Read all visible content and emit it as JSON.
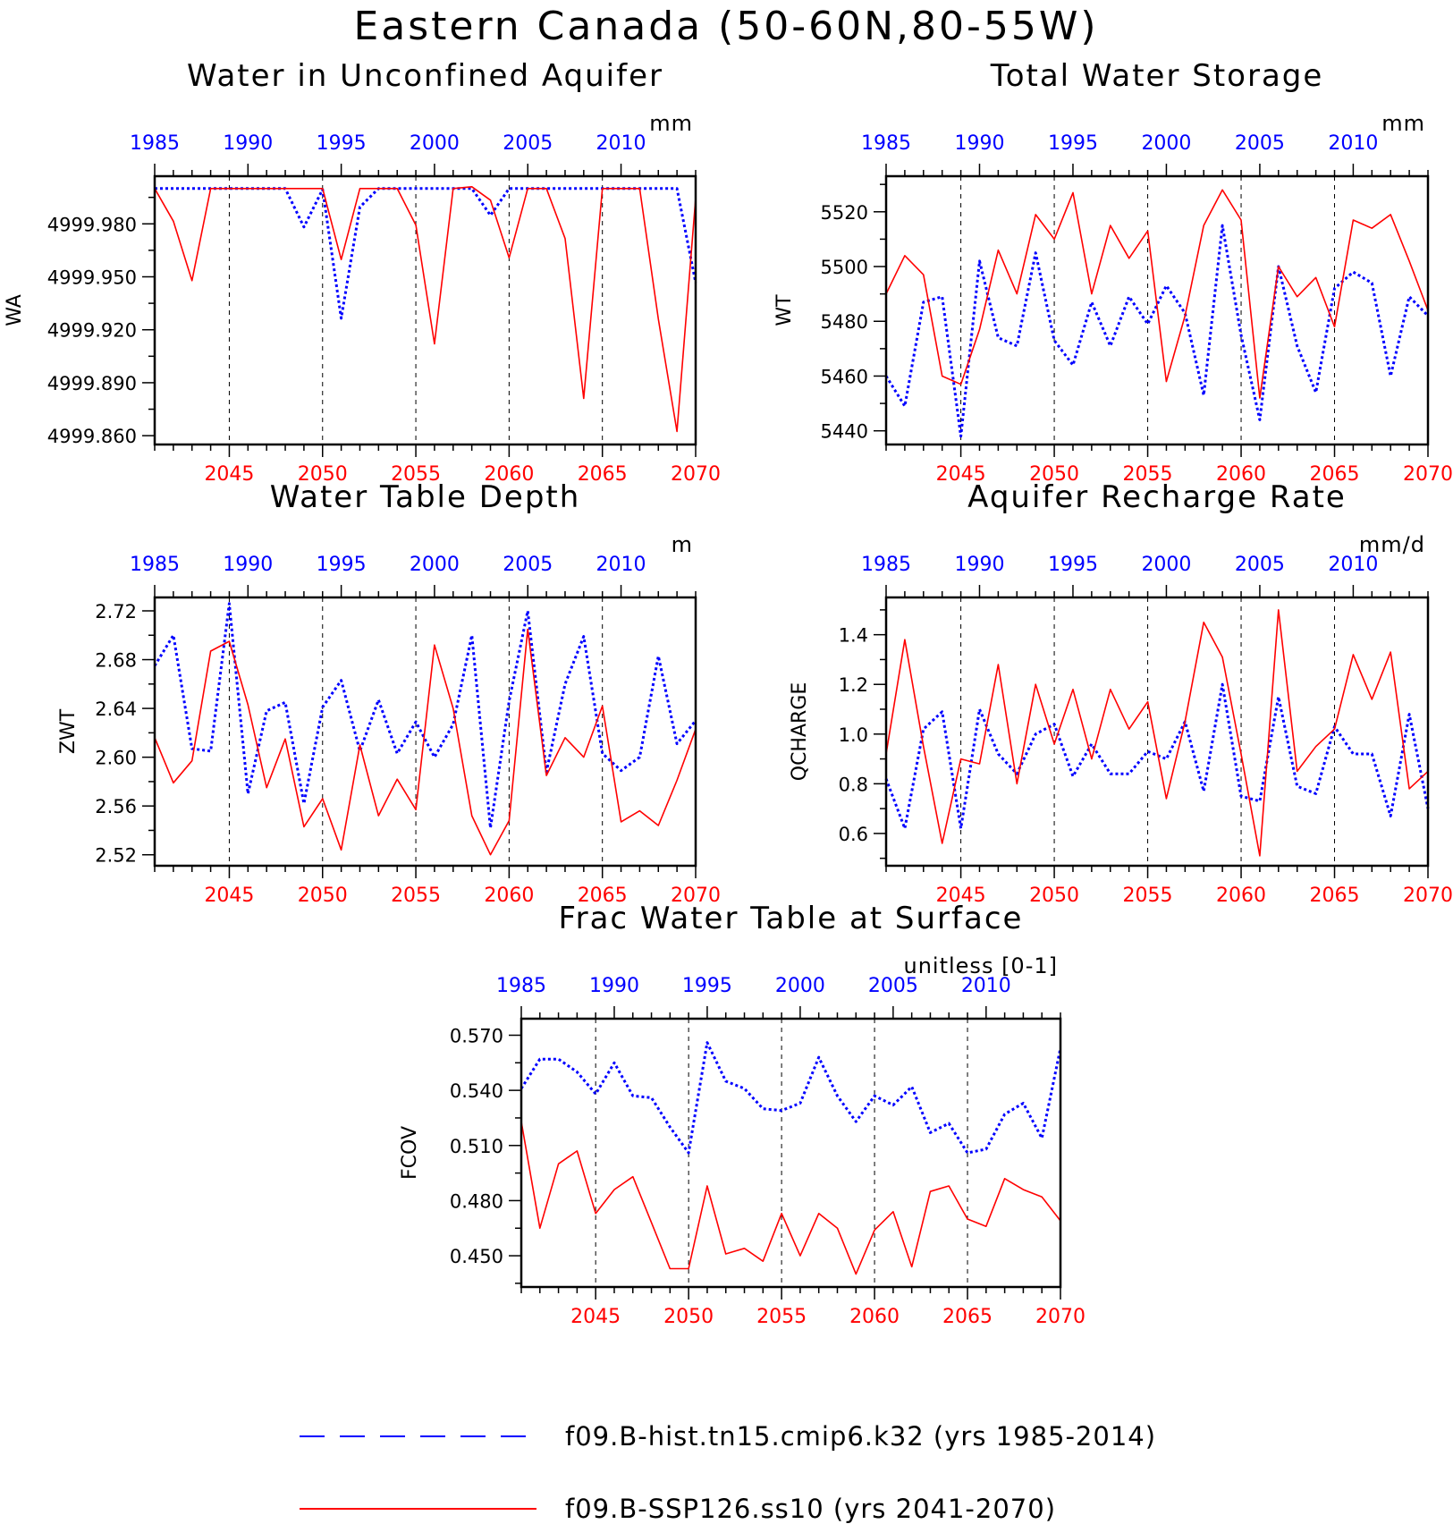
{
  "figure_title": "Eastern Canada (50-60N,80-55W)",
  "colors": {
    "hist": "#0000ff",
    "ssp": "#ff0000",
    "frame": "#000000"
  },
  "legend": [
    {
      "label": "f09.B-hist.tn15.cmip6.k32 (yrs 1985-2014)",
      "color": "#0000ff",
      "dash": "dashed"
    },
    {
      "label": "f09.B-SSP126.ss10 (yrs 2041-2070)",
      "color": "#ff0000",
      "dash": "solid"
    }
  ],
  "chart_data": [
    {
      "type": "line",
      "title": "Water in Unconfined Aquifer",
      "units": "mm",
      "ylabel": "WA",
      "ylim": [
        4999.855,
        5000.007
      ],
      "yticks": [
        4999.86,
        4999.89,
        4999.92,
        4999.95,
        4999.98
      ],
      "ytick_labels": [
        "4999.860",
        "4999.890",
        "4999.920",
        "4999.950",
        "4999.980"
      ],
      "top_axis": {
        "range": [
          1985,
          2014
        ],
        "ticks": [
          1985,
          1990,
          1995,
          2000,
          2005,
          2010
        ]
      },
      "bottom_axis": {
        "range": [
          2041,
          2070
        ],
        "ticks": [
          2045,
          2050,
          2055,
          2060,
          2065,
          2070
        ]
      },
      "series": [
        {
          "name": "f09.B-hist.tn15.cmip6.k32 (yrs 1985-2014)",
          "x": [
            1985,
            1986,
            1987,
            1988,
            1989,
            1990,
            1991,
            1992,
            1993,
            1994,
            1995,
            1996,
            1997,
            1998,
            1999,
            2000,
            2001,
            2002,
            2003,
            2004,
            2005,
            2006,
            2007,
            2008,
            2009,
            2010,
            2011,
            2012,
            2013,
            2014
          ],
          "values": [
            5000,
            5000,
            5000,
            5000,
            5000,
            5000,
            5000,
            5000,
            4999.9782,
            4999.9995,
            4999.9265,
            4999.9895,
            5000,
            5000,
            5000,
            5000,
            5000,
            5000,
            4999.9848,
            5000,
            5000,
            5000,
            5000,
            5000,
            5000,
            5000,
            5000,
            5000,
            5000,
            4999.9467
          ]
        },
        {
          "name": "f09.B-SSP126.ss10 (yrs 2041-2070)",
          "x": [
            2041,
            2042,
            2043,
            2044,
            2045,
            2046,
            2047,
            2048,
            2049,
            2050,
            2051,
            2052,
            2053,
            2054,
            2055,
            2056,
            2057,
            2058,
            2059,
            2060,
            2061,
            2062,
            2063,
            2064,
            2065,
            2066,
            2067,
            2068,
            2069,
            2070
          ],
          "values": [
            5000,
            4999.9815,
            4999.9478,
            5000,
            5000,
            5000,
            5000,
            5000,
            5000,
            5000,
            4999.9598,
            5000,
            5000,
            5000,
            4999.9793,
            4999.912,
            5000,
            5000.001,
            4999.9934,
            4999.9608,
            5000,
            5000,
            4999.9717,
            4999.8811,
            5000,
            5000,
            5000,
            4999.926,
            4999.8624,
            4999.9946
          ]
        }
      ]
    },
    {
      "type": "line",
      "title": "Total Water Storage",
      "units": "mm",
      "ylabel": "WT",
      "ylim": [
        5435,
        5533
      ],
      "yticks": [
        5440,
        5460,
        5480,
        5500,
        5520
      ],
      "ytick_labels": [
        "5440",
        "5460",
        "5480",
        "5500",
        "5520"
      ],
      "top_axis": {
        "range": [
          1985,
          2014
        ],
        "ticks": [
          1985,
          1990,
          1995,
          2000,
          2005,
          2010
        ]
      },
      "bottom_axis": {
        "range": [
          2041,
          2070
        ],
        "ticks": [
          2045,
          2050,
          2055,
          2060,
          2065,
          2070
        ]
      },
      "series": [
        {
          "name": "f09.B-hist.tn15.cmip6.k32 (yrs 1985-2014)",
          "x": [
            1985,
            1986,
            1987,
            1988,
            1989,
            1990,
            1991,
            1992,
            1993,
            1994,
            1995,
            1996,
            1997,
            1998,
            1999,
            2000,
            2001,
            2002,
            2003,
            2004,
            2005,
            2006,
            2007,
            2008,
            2009,
            2010,
            2011,
            2012,
            2013,
            2014
          ],
          "values": [
            5460,
            5449,
            5487,
            5489,
            5438,
            5502,
            5474,
            5471,
            5505,
            5473,
            5464,
            5487,
            5471,
            5489,
            5479,
            5493,
            5483,
            5453,
            5515,
            5475,
            5444,
            5500,
            5471,
            5454,
            5492,
            5498,
            5494,
            5460,
            5489,
            5482
          ]
        },
        {
          "name": "f09.B-SSP126.ss10 (yrs 2041-2070)",
          "x": [
            2041,
            2042,
            2043,
            2044,
            2045,
            2046,
            2047,
            2048,
            2049,
            2050,
            2051,
            2052,
            2053,
            2054,
            2055,
            2056,
            2057,
            2058,
            2059,
            2060,
            2061,
            2062,
            2063,
            2064,
            2065,
            2066,
            2067,
            2068,
            2069,
            2070
          ],
          "values": [
            5490,
            5504,
            5497,
            5460,
            5457,
            5477,
            5506,
            5490,
            5519,
            5510,
            5527,
            5490,
            5515,
            5503,
            5513,
            5458,
            5482,
            5515,
            5528,
            5517,
            5452,
            5500,
            5489,
            5496,
            5478,
            5517,
            5514,
            5519,
            5502,
            5484
          ]
        }
      ]
    },
    {
      "type": "line",
      "title": "Water Table Depth",
      "units": "m",
      "ylabel": "ZWT",
      "ylim": [
        2.511,
        2.731
      ],
      "yticks": [
        2.52,
        2.56,
        2.6,
        2.64,
        2.68,
        2.72
      ],
      "ytick_labels": [
        "2.52",
        "2.56",
        "2.60",
        "2.64",
        "2.68",
        "2.72"
      ],
      "top_axis": {
        "range": [
          1985,
          2014
        ],
        "ticks": [
          1985,
          1990,
          1995,
          2000,
          2005,
          2010
        ]
      },
      "bottom_axis": {
        "range": [
          2041,
          2070
        ],
        "ticks": [
          2045,
          2050,
          2055,
          2060,
          2065,
          2070
        ]
      },
      "series": [
        {
          "name": "f09.B-hist.tn15.cmip6.k32 (yrs 1985-2014)",
          "x": [
            1985,
            1986,
            1987,
            1988,
            1989,
            1990,
            1991,
            1992,
            1993,
            1994,
            1995,
            1996,
            1997,
            1998,
            1999,
            2000,
            2001,
            2002,
            2003,
            2004,
            2005,
            2006,
            2007,
            2008,
            2009,
            2010,
            2011,
            2012,
            2013,
            2014
          ],
          "values": [
            2.675,
            2.7,
            2.607,
            2.605,
            2.726,
            2.57,
            2.638,
            2.645,
            2.562,
            2.641,
            2.663,
            2.605,
            2.647,
            2.603,
            2.629,
            2.6,
            2.627,
            2.7,
            2.542,
            2.646,
            2.72,
            2.588,
            2.66,
            2.699,
            2.603,
            2.589,
            2.6,
            2.683,
            2.611,
            2.63
          ]
        },
        {
          "name": "f09.B-SSP126.ss10 (yrs 2041-2070)",
          "x": [
            2041,
            2042,
            2043,
            2044,
            2045,
            2046,
            2047,
            2048,
            2049,
            2050,
            2051,
            2052,
            2053,
            2054,
            2055,
            2056,
            2057,
            2058,
            2059,
            2060,
            2061,
            2062,
            2063,
            2064,
            2065,
            2066,
            2067,
            2068,
            2069,
            2070
          ],
          "values": [
            2.616,
            2.579,
            2.597,
            2.687,
            2.695,
            2.643,
            2.575,
            2.615,
            2.543,
            2.566,
            2.524,
            2.61,
            2.552,
            2.582,
            2.557,
            2.692,
            2.64,
            2.552,
            2.52,
            2.548,
            2.705,
            2.585,
            2.616,
            2.6,
            2.642,
            2.547,
            2.556,
            2.544,
            2.581,
            2.623
          ]
        }
      ]
    },
    {
      "type": "line",
      "title": "Aquifer Recharge Rate",
      "units": "mm/d",
      "ylabel": "QCHARGE",
      "ylim": [
        0.47,
        1.55
      ],
      "yticks": [
        0.6,
        0.8,
        1.0,
        1.2,
        1.4
      ],
      "ytick_labels": [
        "0.6",
        "0.8",
        "1.0",
        "1.2",
        "1.4"
      ],
      "top_axis": {
        "range": [
          1985,
          2014
        ],
        "ticks": [
          1985,
          1990,
          1995,
          2000,
          2005,
          2010
        ]
      },
      "bottom_axis": {
        "range": [
          2041,
          2070
        ],
        "ticks": [
          2045,
          2050,
          2055,
          2060,
          2065,
          2070
        ]
      },
      "series": [
        {
          "name": "f09.B-hist.tn15.cmip6.k32 (yrs 1985-2014)",
          "x": [
            1985,
            1986,
            1987,
            1988,
            1989,
            1990,
            1991,
            1992,
            1993,
            1994,
            1995,
            1996,
            1997,
            1998,
            1999,
            2000,
            2001,
            2002,
            2003,
            2004,
            2005,
            2006,
            2007,
            2008,
            2009,
            2010,
            2011,
            2012,
            2013,
            2014
          ],
          "values": [
            0.82,
            0.62,
            1.02,
            1.09,
            0.62,
            1.1,
            0.92,
            0.84,
            1.0,
            1.04,
            0.83,
            0.96,
            0.84,
            0.84,
            0.93,
            0.9,
            1.05,
            0.77,
            1.2,
            0.75,
            0.73,
            1.15,
            0.79,
            0.76,
            1.03,
            0.92,
            0.92,
            0.67,
            1.08,
            0.7
          ]
        },
        {
          "name": "f09.B-SSP126.ss10 (yrs 2041-2070)",
          "x": [
            2041,
            2042,
            2043,
            2044,
            2045,
            2046,
            2047,
            2048,
            2049,
            2050,
            2051,
            2052,
            2053,
            2054,
            2055,
            2056,
            2057,
            2058,
            2059,
            2060,
            2061,
            2062,
            2063,
            2064,
            2065,
            2066,
            2067,
            2068,
            2069,
            2070
          ],
          "values": [
            0.92,
            1.38,
            0.95,
            0.56,
            0.9,
            0.88,
            1.28,
            0.8,
            1.2,
            0.96,
            1.18,
            0.9,
            1.18,
            1.02,
            1.13,
            0.74,
            1.05,
            1.45,
            1.31,
            0.92,
            0.51,
            1.5,
            0.85,
            0.95,
            1.02,
            1.32,
            1.14,
            1.33,
            0.78,
            0.85
          ]
        }
      ]
    },
    {
      "type": "line",
      "title": "Frac Water Table at Surface",
      "units": "unitless [0-1]",
      "ylabel": "FCOV",
      "ylim": [
        0.433,
        0.579
      ],
      "yticks": [
        0.45,
        0.48,
        0.51,
        0.54,
        0.57
      ],
      "ytick_labels": [
        "0.450",
        "0.480",
        "0.510",
        "0.540",
        "0.570"
      ],
      "top_axis": {
        "range": [
          1985,
          2014
        ],
        "ticks": [
          1985,
          1990,
          1995,
          2000,
          2005,
          2010
        ]
      },
      "bottom_axis": {
        "range": [
          2041,
          2070
        ],
        "ticks": [
          2045,
          2050,
          2055,
          2060,
          2065,
          2070
        ]
      },
      "series": [
        {
          "name": "f09.B-hist.tn15.cmip6.k32 (yrs 1985-2014)",
          "x": [
            1985,
            1986,
            1987,
            1988,
            1989,
            1990,
            1991,
            1992,
            1993,
            1994,
            1995,
            1996,
            1997,
            1998,
            1999,
            2000,
            2001,
            2002,
            2003,
            2004,
            2005,
            2006,
            2007,
            2008,
            2009,
            2010,
            2011,
            2012,
            2013,
            2014
          ],
          "values": [
            0.541,
            0.557,
            0.557,
            0.55,
            0.538,
            0.555,
            0.537,
            0.536,
            0.52,
            0.506,
            0.566,
            0.545,
            0.541,
            0.53,
            0.529,
            0.533,
            0.558,
            0.537,
            0.523,
            0.537,
            0.532,
            0.542,
            0.517,
            0.522,
            0.506,
            0.508,
            0.527,
            0.533,
            0.514,
            0.563
          ]
        },
        {
          "name": "f09.B-SSP126.ss10 (yrs 2041-2070)",
          "x": [
            2041,
            2042,
            2043,
            2044,
            2045,
            2046,
            2047,
            2048,
            2049,
            2050,
            2051,
            2052,
            2053,
            2054,
            2055,
            2056,
            2057,
            2058,
            2059,
            2060,
            2061,
            2062,
            2063,
            2064,
            2065,
            2066,
            2067,
            2068,
            2069,
            2070
          ],
          "values": [
            0.523,
            0.465,
            0.5,
            0.507,
            0.473,
            0.486,
            0.493,
            0.468,
            0.443,
            0.443,
            0.488,
            0.451,
            0.454,
            0.447,
            0.473,
            0.45,
            0.473,
            0.465,
            0.44,
            0.464,
            0.474,
            0.444,
            0.485,
            0.488,
            0.47,
            0.466,
            0.492,
            0.486,
            0.482,
            0.469
          ]
        }
      ]
    }
  ]
}
